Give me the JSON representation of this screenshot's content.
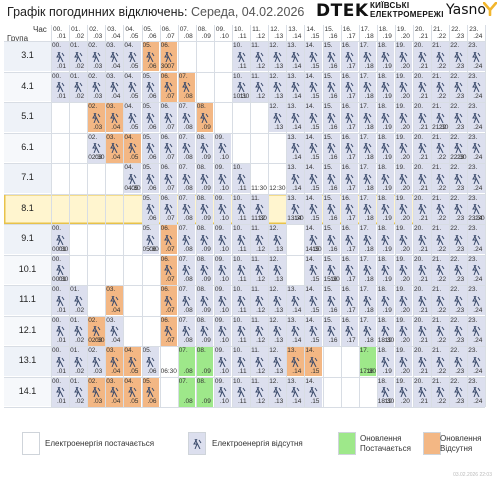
{
  "header": {
    "title": "Графік погодинних відключень:",
    "date": "Середа, 04.02.2026",
    "dtek": "DTEK",
    "dtek_sub_1": "КИЇВСЬКІ",
    "dtek_sub_2": "ЕЛЕКТРОМЕРЕЖІ",
    "yasno": "Yasno"
  },
  "grid_header": {
    "hour_label": "Час",
    "group_label": "Група"
  },
  "hours": [
    {
      "top": "00.",
      "bot": ".01"
    },
    {
      "top": "01.",
      "bot": ".02"
    },
    {
      "top": "02.",
      "bot": ".03"
    },
    {
      "top": "03.",
      "bot": ".04"
    },
    {
      "top": "04.",
      "bot": ".05"
    },
    {
      "top": "05.",
      "bot": ".06"
    },
    {
      "top": "06.",
      "bot": ".07"
    },
    {
      "top": "07.",
      "bot": ".08"
    },
    {
      "top": "08.",
      "bot": ".09"
    },
    {
      "top": "09.",
      "bot": ".10"
    },
    {
      "top": "10.",
      "bot": ".11"
    },
    {
      "top": "11.",
      "bot": ".12"
    },
    {
      "top": "12.",
      "bot": ".13"
    },
    {
      "top": "13.",
      "bot": ".14"
    },
    {
      "top": "14.",
      "bot": ".15"
    },
    {
      "top": "15.",
      "bot": ".16"
    },
    {
      "top": "16.",
      "bot": ".17"
    },
    {
      "top": "17.",
      "bot": ".18"
    },
    {
      "top": "18.",
      "bot": ".19"
    },
    {
      "top": "19.",
      "bot": ".20"
    },
    {
      "top": "20.",
      "bot": ".21"
    },
    {
      "top": "21.",
      "bot": ".22"
    },
    {
      "top": "22.",
      "bot": ".23"
    },
    {
      "top": "23.",
      "bot": ".24"
    }
  ],
  "colors": {
    "off": "#dcdfee",
    "update_on": "#9ee88a",
    "update_off": "#f3b784",
    "selected_row": "#fff5cf",
    "selected_border": "#e8c24a",
    "group_bg": "#eef2f8",
    "group_bg_alt": "#f6f8fb",
    "icon": "#3a4a6b"
  },
  "groups": [
    {
      "name": "3.1",
      "cells": [
        2,
        2,
        2,
        2,
        2,
        1,
        1,
        0,
        0,
        0,
        2,
        2,
        2,
        2,
        2,
        2,
        2,
        2,
        2,
        2,
        2,
        2,
        2,
        2
      ],
      "notes": {
        "6": "30"
      }
    },
    {
      "name": "4.1",
      "cells": [
        2,
        2,
        2,
        2,
        2,
        2,
        1,
        1,
        0,
        0,
        2,
        2,
        2,
        2,
        2,
        2,
        2,
        2,
        2,
        2,
        2,
        2,
        2,
        2
      ],
      "notes": {
        "10": "10:30"
      }
    },
    {
      "name": "5.1",
      "cells": [
        0,
        0,
        1,
        1,
        2,
        2,
        2,
        2,
        1,
        0,
        0,
        0,
        2,
        2,
        2,
        2,
        2,
        2,
        2,
        2,
        2,
        2,
        2,
        2
      ],
      "notes": {
        "21": "21:30"
      }
    },
    {
      "name": "6.1",
      "cells": [
        0,
        0,
        2,
        1,
        1,
        2,
        2,
        2,
        2,
        2,
        0,
        0,
        0,
        2,
        2,
        2,
        2,
        2,
        2,
        2,
        2,
        2,
        2,
        2
      ],
      "notes": {
        "2": "02:30",
        "22": "22:30"
      }
    },
    {
      "name": "7.1",
      "cells": [
        0,
        0,
        0,
        0,
        2,
        2,
        2,
        2,
        2,
        2,
        2,
        0,
        0,
        2,
        2,
        2,
        2,
        2,
        2,
        2,
        2,
        2,
        2,
        2
      ],
      "notes": {
        "4": "04:30",
        "11": "11:30",
        "12": "12:30"
      }
    },
    {
      "name": "8.1",
      "cells": [
        0,
        0,
        0,
        0,
        0,
        2,
        2,
        2,
        2,
        2,
        2,
        2,
        0,
        2,
        2,
        2,
        2,
        2,
        2,
        2,
        2,
        2,
        2,
        2
      ],
      "notes": {
        "13": "13:30",
        "23": "23:30",
        "11": "11:30"
      }
    },
    {
      "name": "9.1",
      "cells": [
        2,
        0,
        0,
        0,
        0,
        2,
        1,
        2,
        2,
        2,
        2,
        2,
        2,
        0,
        2,
        2,
        2,
        2,
        2,
        2,
        2,
        2,
        2,
        2
      ],
      "notes": {
        "0": "00:30",
        "5": "05:30",
        "14": "14:30"
      }
    },
    {
      "name": "10.1",
      "cells": [
        2,
        0,
        0,
        0,
        0,
        0,
        1,
        2,
        2,
        2,
        2,
        2,
        2,
        0,
        2,
        2,
        2,
        2,
        2,
        2,
        2,
        2,
        2,
        2
      ],
      "notes": {
        "0": "00:30",
        "15": "15:30"
      }
    },
    {
      "name": "11.1",
      "cells": [
        2,
        2,
        0,
        1,
        0,
        0,
        1,
        2,
        2,
        2,
        2,
        2,
        2,
        2,
        2,
        2,
        2,
        2,
        2,
        2,
        2,
        2,
        2,
        2
      ],
      "notes": {}
    },
    {
      "name": "12.1",
      "cells": [
        2,
        2,
        1,
        2,
        0,
        0,
        1,
        2,
        2,
        2,
        2,
        2,
        2,
        2,
        2,
        2,
        2,
        2,
        2,
        2,
        2,
        2,
        2,
        2
      ],
      "notes": {
        "2": "02:30",
        "18": "18:30"
      }
    },
    {
      "name": "13.1",
      "cells": [
        2,
        2,
        2,
        1,
        1,
        2,
        0,
        3,
        3,
        2,
        2,
        2,
        2,
        1,
        1,
        0,
        0,
        3,
        2,
        2,
        2,
        2,
        2,
        2
      ],
      "notes": {
        "6": "06:30",
        "17": "17:30"
      }
    },
    {
      "name": "14.1",
      "cells": [
        2,
        2,
        1,
        1,
        1,
        1,
        0,
        3,
        3,
        2,
        2,
        2,
        2,
        2,
        2,
        0,
        0,
        0,
        2,
        2,
        2,
        2,
        2,
        2
      ],
      "notes": {
        "18": "18:30"
      }
    }
  ],
  "legend": {
    "on": "Електроенергія постачається",
    "off": "Електроенергія відсутня",
    "upd_on_1": "Оновлення",
    "upd_on_2": "Постачається",
    "upd_off_1": "Оновлення",
    "upd_off_2": "Відсутня"
  },
  "footer": "03.02.2026     22:03"
}
